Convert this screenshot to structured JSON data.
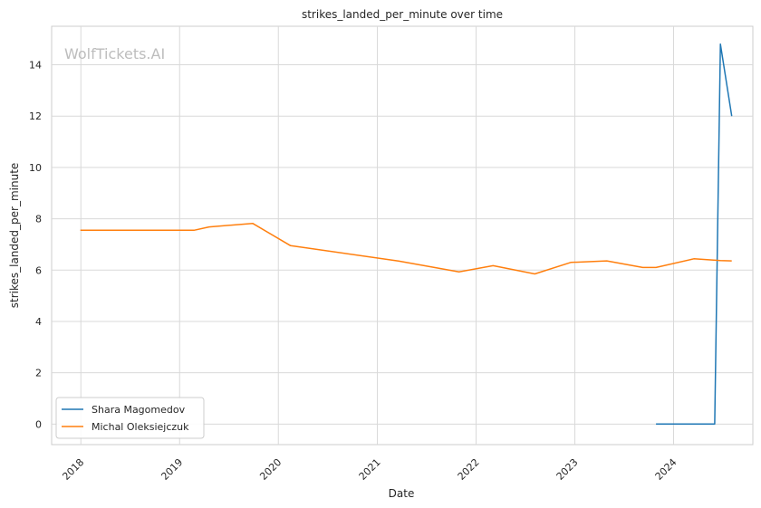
{
  "chart_data": {
    "type": "line",
    "title": "strikes_landed_per_minute over time",
    "xlabel": "Date",
    "ylabel": "strikes_landed_per_minute",
    "watermark": "WolfTickets.AI",
    "xlim": [
      "2017-09-15",
      "2024-10-20"
    ],
    "ylim": [
      -0.8,
      15.5
    ],
    "x_ticks": [
      "2018",
      "2019",
      "2020",
      "2021",
      "2022",
      "2023",
      "2024"
    ],
    "y_ticks": [
      "0",
      "2",
      "4",
      "6",
      "8",
      "10",
      "12",
      "14"
    ],
    "grid": true,
    "legend_position": "lower-left",
    "series": [
      {
        "name": "Shara Magomedov",
        "color": "#1f77b4",
        "points": [
          {
            "x": "2023-10-28",
            "y": 0.0
          },
          {
            "x": "2024-06-01",
            "y": 0.0
          },
          {
            "x": "2024-06-22",
            "y": 14.8
          },
          {
            "x": "2024-08-03",
            "y": 12.0
          }
        ]
      },
      {
        "name": "Michal Oleksiejczuk",
        "color": "#ff7f0e",
        "points": [
          {
            "x": "2017-12-30",
            "y": 7.55
          },
          {
            "x": "2019-02-23",
            "y": 7.55
          },
          {
            "x": "2019-04-20",
            "y": 7.68
          },
          {
            "x": "2019-09-28",
            "y": 7.82
          },
          {
            "x": "2020-02-15",
            "y": 6.95
          },
          {
            "x": "2021-03-20",
            "y": 6.35
          },
          {
            "x": "2021-10-30",
            "y": 5.93
          },
          {
            "x": "2022-03-05",
            "y": 6.17
          },
          {
            "x": "2022-08-06",
            "y": 5.85
          },
          {
            "x": "2022-12-17",
            "y": 6.3
          },
          {
            "x": "2023-04-29",
            "y": 6.36
          },
          {
            "x": "2023-09-09",
            "y": 6.1
          },
          {
            "x": "2023-10-28",
            "y": 6.1
          },
          {
            "x": "2024-03-16",
            "y": 6.44
          },
          {
            "x": "2024-06-22",
            "y": 6.37
          },
          {
            "x": "2024-08-03",
            "y": 6.36
          }
        ]
      }
    ]
  }
}
